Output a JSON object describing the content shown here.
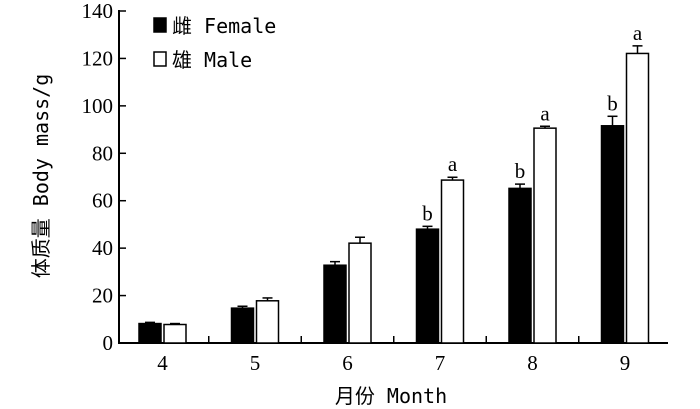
{
  "chart_data": {
    "type": "bar",
    "xlabel": "月份 Month",
    "ylabel": "体质量 Body mass/g",
    "ylim": [
      0,
      140
    ],
    "yticks": [
      0,
      20,
      40,
      60,
      80,
      100,
      120,
      140
    ],
    "categories": [
      "4",
      "5",
      "6",
      "7",
      "8",
      "9"
    ],
    "legend_position": "top-left",
    "series": [
      {
        "name": "雌 Female",
        "color": "#000000",
        "values": [
          8.2,
          14.7,
          32.8,
          48.0,
          65.2,
          91.6
        ],
        "errors": [
          0.5,
          0.8,
          1.5,
          1.2,
          1.8,
          4.0
        ],
        "labels": [
          "",
          "",
          "",
          "b",
          "b",
          "b"
        ]
      },
      {
        "name": "雄 Male",
        "color": "#ffffff",
        "values": [
          7.8,
          17.8,
          42.1,
          68.7,
          90.6,
          122.1
        ],
        "errors": [
          0.4,
          1.2,
          2.5,
          1.2,
          0.8,
          3.2
        ],
        "labels": [
          "",
          "",
          "",
          "a",
          "a",
          "a"
        ]
      }
    ]
  }
}
